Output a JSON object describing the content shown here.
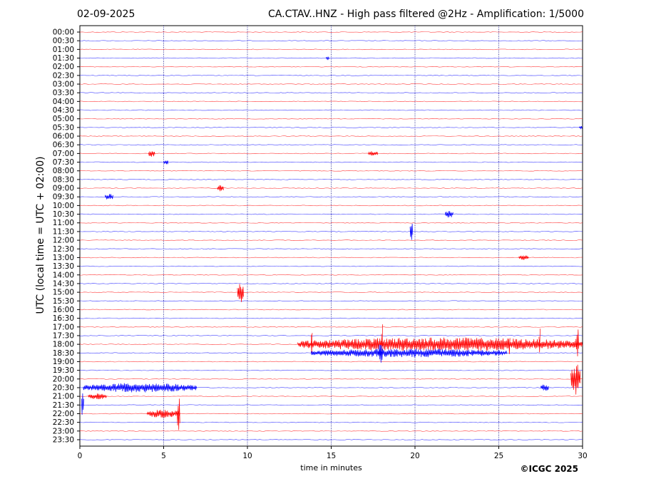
{
  "header": {
    "date": "02-09-2025",
    "title": "CA.CTAV..HNZ - High pass filtered @2Hz - Amplification: 1/5000"
  },
  "footer": {
    "copyright": "©ICGC 2025"
  },
  "chart_data": {
    "type": "line",
    "title": "CA.CTAV..HNZ - High pass filtered @2Hz - Amplification: 1/5000",
    "xlabel": "time in minutes",
    "ylabel": "UTC (local time = UTC + 02:00)",
    "xlim": [
      0,
      30
    ],
    "x_ticks": [
      0,
      5,
      10,
      15,
      20,
      25,
      30
    ],
    "vertical_grid_at": [
      5,
      10,
      15,
      20,
      25
    ],
    "colors": {
      "red_trace": "#ff0000",
      "blue_trace": "#0000ff",
      "grid": "#000080"
    },
    "rows": [
      "00:00",
      "00:30",
      "01:00",
      "01:30",
      "02:00",
      "02:30",
      "03:00",
      "03:30",
      "04:00",
      "04:30",
      "05:00",
      "05:30",
      "06:00",
      "06:30",
      "07:00",
      "07:30",
      "08:00",
      "08:30",
      "09:00",
      "09:30",
      "10:00",
      "10:30",
      "11:00",
      "11:30",
      "12:00",
      "12:30",
      "13:00",
      "13:30",
      "14:00",
      "14:30",
      "15:00",
      "15:30",
      "16:00",
      "16:30",
      "17:00",
      "17:30",
      "18:00",
      "18:30",
      "19:00",
      "19:30",
      "20:00",
      "20:30",
      "21:00",
      "21:30",
      "22:00",
      "22:30",
      "23:00",
      "23:30"
    ],
    "events": [
      {
        "row": "01:30",
        "start": 14.7,
        "end": 14.9,
        "amp": 0.25
      },
      {
        "row": "05:30",
        "start": 29.8,
        "end": 30.0,
        "amp": 0.2
      },
      {
        "row": "07:00",
        "start": 4.1,
        "end": 4.5,
        "amp": 0.45
      },
      {
        "row": "07:00",
        "start": 17.2,
        "end": 17.8,
        "amp": 0.3
      },
      {
        "row": "07:30",
        "start": 5.0,
        "end": 5.3,
        "amp": 0.3
      },
      {
        "row": "09:00",
        "start": 8.2,
        "end": 8.6,
        "amp": 0.4
      },
      {
        "row": "09:30",
        "start": 1.5,
        "end": 2.0,
        "amp": 0.45
      },
      {
        "row": "10:30",
        "start": 21.8,
        "end": 22.3,
        "amp": 0.45
      },
      {
        "row": "11:30",
        "start": 19.7,
        "end": 19.9,
        "amp": 1.2
      },
      {
        "row": "13:00",
        "start": 26.2,
        "end": 26.8,
        "amp": 0.3
      },
      {
        "row": "15:00",
        "start": 9.4,
        "end": 9.8,
        "amp": 1.3
      },
      {
        "row": "18:00",
        "start": 13.0,
        "end": 30.0,
        "amp": 0.8
      },
      {
        "row": "18:00",
        "start": 13.8,
        "end": 13.9,
        "amp": 2.5
      },
      {
        "row": "18:00",
        "start": 18.0,
        "end": 18.1,
        "amp": 2.5
      },
      {
        "row": "18:00",
        "start": 25.6,
        "end": 25.7,
        "amp": 1.8
      },
      {
        "row": "18:00",
        "start": 27.4,
        "end": 27.5,
        "amp": 2.0
      },
      {
        "row": "18:00",
        "start": 29.6,
        "end": 29.8,
        "amp": 2.0
      },
      {
        "row": "18:30",
        "start": 13.8,
        "end": 25.5,
        "amp": 0.5
      },
      {
        "row": "18:30",
        "start": 17.8,
        "end": 18.1,
        "amp": 1.2
      },
      {
        "row": "20:00",
        "start": 29.3,
        "end": 29.9,
        "amp": 1.8
      },
      {
        "row": "20:30",
        "start": 0.2,
        "end": 7.0,
        "amp": 0.55
      },
      {
        "row": "20:30",
        "start": 27.5,
        "end": 28.0,
        "amp": 0.4
      },
      {
        "row": "21:00",
        "start": 0.5,
        "end": 1.6,
        "amp": 0.35
      },
      {
        "row": "21:30",
        "start": 0.1,
        "end": 0.25,
        "amp": 1.8
      },
      {
        "row": "22:00",
        "start": 4.0,
        "end": 6.0,
        "amp": 0.5
      },
      {
        "row": "22:00",
        "start": 5.8,
        "end": 6.0,
        "amp": 2.0
      }
    ]
  }
}
